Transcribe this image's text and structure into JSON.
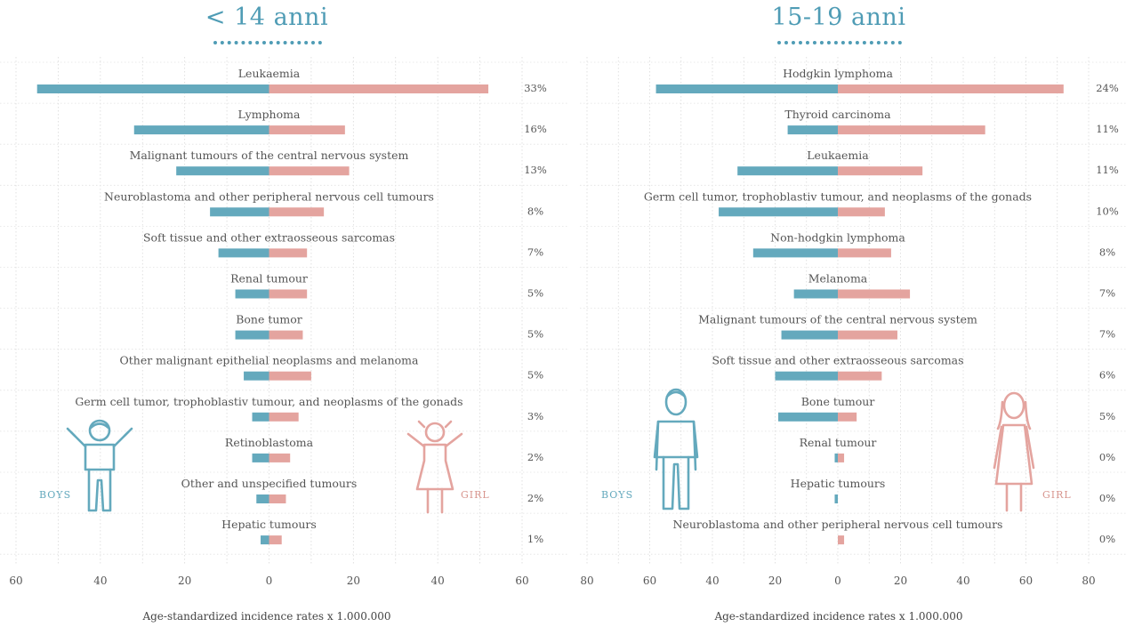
{
  "colors": {
    "boys": "#64a9bd",
    "girls": "#e4a49f",
    "accent": "#4f9cb5",
    "girl_label": "#d8968f"
  },
  "chart_data": [
    {
      "type": "bar",
      "title": "< 14 anni",
      "xlabel": "Age-standardized incidence rates x 1.000.000",
      "xlim": [
        -60,
        60
      ],
      "xticks": [
        "60",
        "40",
        "20",
        "0",
        "20",
        "40",
        "60"
      ],
      "grid": true,
      "categories": [
        "Leukaemia",
        "Lymphoma",
        "Malignant tumours of the central nervous system",
        "Neuroblastoma and other peripheral nervous cell tumours",
        "Soft tissue and other extraosseous sarcomas",
        "Renal tumour",
        "Bone tumor",
        "Other malignant epithelial neoplasms and melanoma",
        "Germ cell tumor, trophoblastiv tumour, and neoplasms of the gonads",
        "Retinoblastoma",
        "Other and unspecified tumours",
        "Hepatic tumours"
      ],
      "series": [
        {
          "name": "BOYS",
          "values": [
            55,
            32,
            22,
            14,
            12,
            8,
            8,
            6,
            4,
            4,
            3,
            2
          ]
        },
        {
          "name": "GIRL",
          "values": [
            52,
            18,
            19,
            13,
            9,
            9,
            8,
            10,
            7,
            5,
            4,
            3
          ]
        }
      ],
      "percentages": [
        "33%",
        "16%",
        "13%",
        "8%",
        "7%",
        "5%",
        "5%",
        "5%",
        "3%",
        "2%",
        "2%",
        "1%"
      ],
      "legend": {
        "boys": "BOYS",
        "girls": "GIRL"
      }
    },
    {
      "type": "bar",
      "title": "15-19 anni",
      "xlabel": "Age-standardized incidence rates x 1.000.000",
      "xlim": [
        -80,
        80
      ],
      "xticks": [
        "80",
        "60",
        "40",
        "20",
        "0",
        "20",
        "40",
        "60",
        "80"
      ],
      "grid": true,
      "categories": [
        "Hodgkin lymphoma",
        "Thyroid carcinoma",
        "Leukaemia",
        "Germ cell tumor, trophoblastiv tumour, and neoplasms of the gonads",
        "Non-hodgkin lymphoma",
        "Melanoma",
        "Malignant tumours of the central nervous system",
        "Soft tissue and other extraosseous sarcomas",
        "Bone tumour",
        "Renal tumour",
        "Hepatic tumours",
        "Neuroblastoma and other peripheral nervous cell tumours"
      ],
      "series": [
        {
          "name": "BOYS",
          "values": [
            58,
            16,
            32,
            38,
            27,
            14,
            18,
            20,
            19,
            1,
            1,
            0
          ]
        },
        {
          "name": "GIRL",
          "values": [
            72,
            47,
            27,
            15,
            17,
            23,
            19,
            14,
            6,
            2,
            0,
            2
          ]
        }
      ],
      "percentages": [
        "24%",
        "11%",
        "11%",
        "10%",
        "8%",
        "7%",
        "7%",
        "6%",
        "5%",
        "0%",
        "0%",
        "0%"
      ],
      "legend": {
        "boys": "BOYS",
        "girls": "GIRL"
      }
    }
  ]
}
